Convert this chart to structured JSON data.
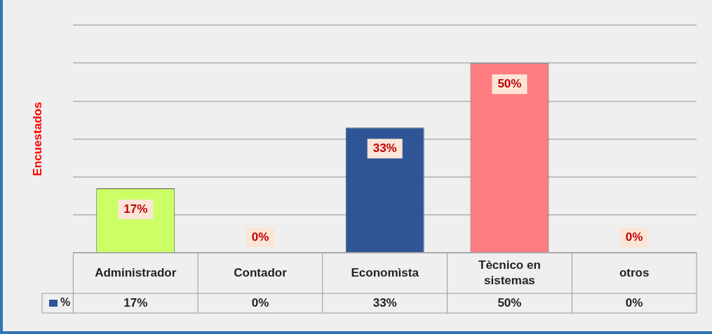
{
  "chart_data": {
    "type": "bar",
    "ylabel": "Encuestados",
    "categories": [
      "Administrador",
      "Contador",
      "Economìsta",
      "Tècnico en sistemas",
      "otros"
    ],
    "series": [
      {
        "name": "%",
        "color": "#2f5597",
        "colors": [
          "#ccff66",
          "#c00000",
          "#2f5597",
          "#ff7c80",
          "#7030a0"
        ],
        "values": [
          17,
          0,
          33,
          50,
          0
        ],
        "value_labels": [
          "17%",
          "0%",
          "33%",
          "50%",
          "0%"
        ]
      }
    ],
    "ylim": [
      0,
      60
    ],
    "grid": "y",
    "legend": "bottom",
    "tick_labels": false
  }
}
